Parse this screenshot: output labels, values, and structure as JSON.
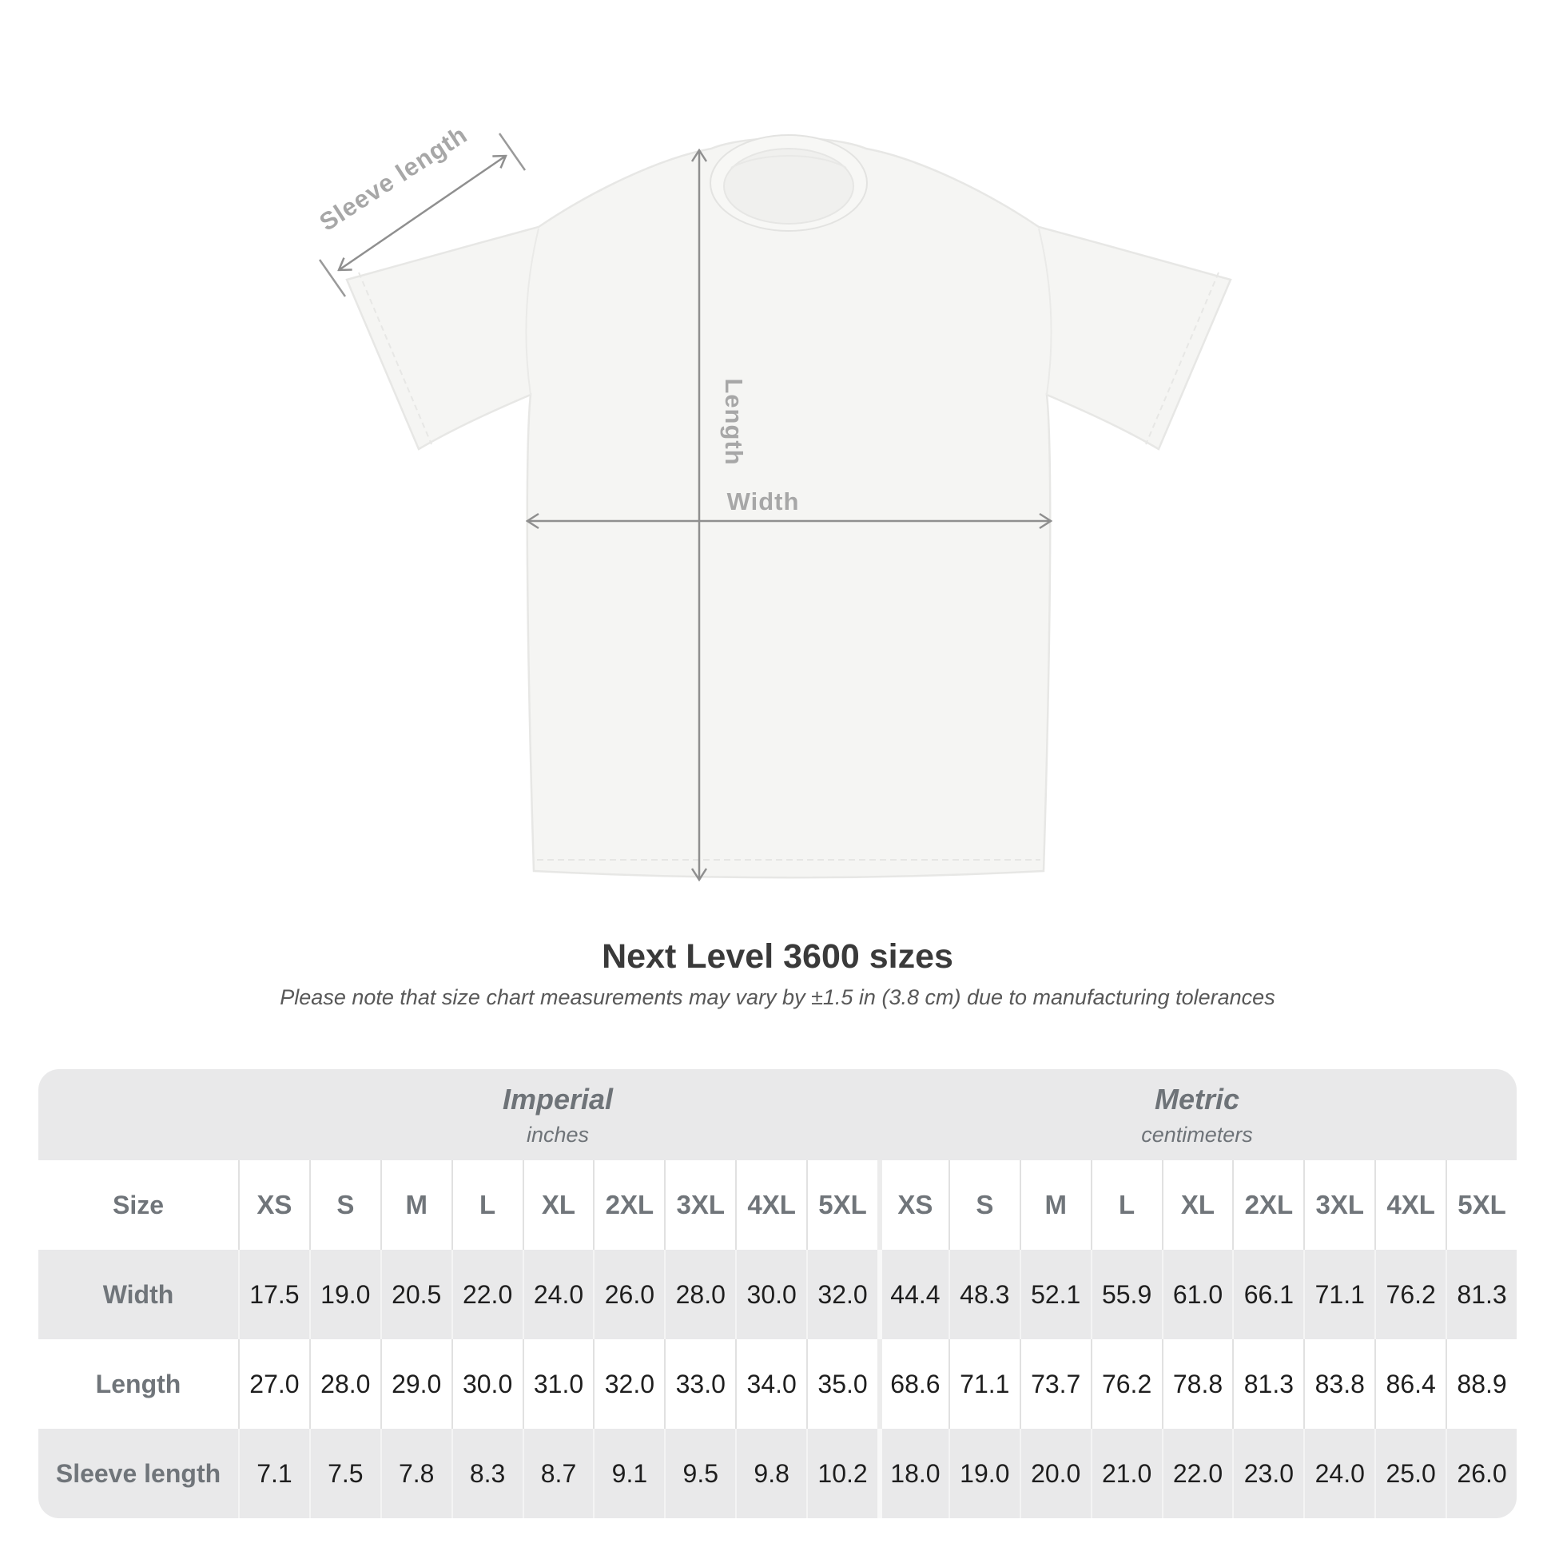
{
  "shirt": {
    "sleeve_label": "Sleeve length",
    "length_label": "Length",
    "width_label": "Width"
  },
  "title": "Next Level 3600 sizes",
  "subtitle": "Please note that size chart measurements may vary by ±1.5 in (3.8 cm) due to manufacturing tolerances",
  "table": {
    "unit_groups": [
      {
        "name": "Imperial",
        "unit": "inches"
      },
      {
        "name": "Metric",
        "unit": "centimeters"
      }
    ],
    "size_header_label": "Size",
    "sizes": [
      "XS",
      "S",
      "M",
      "L",
      "XL",
      "2XL",
      "3XL",
      "4XL",
      "5XL"
    ],
    "rows": [
      {
        "label": "Width",
        "imperial": [
          "17.5",
          "19.0",
          "20.5",
          "22.0",
          "24.0",
          "26.0",
          "28.0",
          "30.0",
          "32.0"
        ],
        "metric": [
          "44.4",
          "48.3",
          "52.1",
          "55.9",
          "61.0",
          "66.1",
          "71.1",
          "76.2",
          "81.3"
        ]
      },
      {
        "label": "Length",
        "imperial": [
          "27.0",
          "28.0",
          "29.0",
          "30.0",
          "31.0",
          "32.0",
          "33.0",
          "34.0",
          "35.0"
        ],
        "metric": [
          "68.6",
          "71.1",
          "73.7",
          "76.2",
          "78.8",
          "81.3",
          "83.8",
          "86.4",
          "88.9"
        ]
      },
      {
        "label": "Sleeve length",
        "imperial": [
          "7.1",
          "7.5",
          "7.8",
          "8.3",
          "8.7",
          "9.1",
          "9.5",
          "9.8",
          "10.2"
        ],
        "metric": [
          "18.0",
          "19.0",
          "20.0",
          "21.0",
          "22.0",
          "23.0",
          "24.0",
          "25.0",
          "26.0"
        ]
      }
    ]
  },
  "colors": {
    "arrow_gray": "#8f8f8f",
    "dim_label_gray": "#a7a7a7",
    "table_bg": "#e9e9ea",
    "header_text": "#6e7378",
    "value_text": "#1e1e1e"
  }
}
